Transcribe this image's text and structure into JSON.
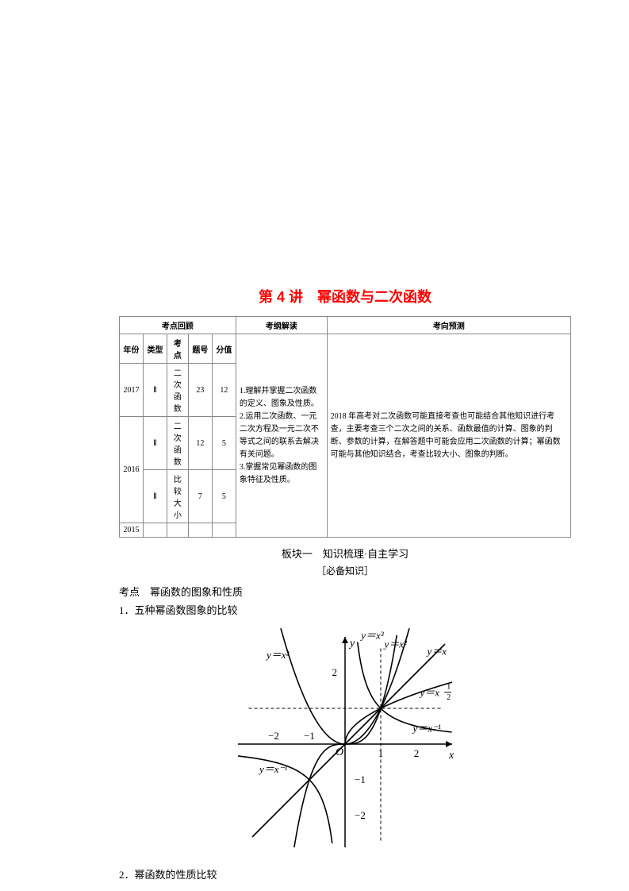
{
  "title": "第 4 讲　幂函数与二次函数",
  "review_table": {
    "header_groups": [
      "考点回顾",
      "考纲解读",
      "考向预测"
    ],
    "sub_headers": [
      "年份",
      "类型",
      "考点",
      "题号",
      "分值"
    ],
    "rows": [
      {
        "year": "2017",
        "type": "Ⅱ",
        "topic": "二次函数",
        "qno": "23",
        "score": "12"
      },
      {
        "year_rowspan": "2016",
        "type": "Ⅱ",
        "topic": "二次函数",
        "qno": "12",
        "score": "5"
      },
      {
        "type": "Ⅱ",
        "topic": "比较大小",
        "qno": "7",
        "score": "5"
      },
      {
        "year": "2015",
        "type": "",
        "topic": "",
        "qno": "",
        "score": ""
      }
    ],
    "jiedu": "1.理解并掌握二次函数的定义、图象及性质。\n2.运用二次函数、一元二次方程及一元二次不等式之间的联系去解决有关问题。\n3.掌握常见幂函数的图象特征及性质。",
    "yuce": "2018 年高考对二次函数可能直接考查也可能结合其他知识进行考查，主要考查三个二次之间的关系、函数最值的计算、图象的判断、参数的计算，在解答题中可能会应用二次函数的计算；幂函数可能与其他知识结合，考查比较大小、图象的判断。"
  },
  "section": "板块一　知识梳理·自主学习",
  "sub_section": "［必备知识］",
  "kaodian": "考点　幂函数的图象和性质",
  "item1": "1．五种幂函数图象的比较",
  "item2": "2．幂函数的性质比较",
  "graph": {
    "axis_color": "#000000",
    "curve_color": "#000000",
    "grid_dash": "4,3",
    "xlim": [
      -3,
      3
    ],
    "ylim": [
      -3,
      3
    ],
    "ticks_x": [
      -2,
      -1,
      1,
      2
    ],
    "ticks_y": [
      -2,
      -1,
      2
    ],
    "labels": {
      "yaxis": "y",
      "xaxis": "x",
      "origin": "O",
      "yx": "y＝x",
      "yx2_l": "y＝x²",
      "yx2_r": "y＝x²",
      "yx3": "y＝x³",
      "yxhalf": "y＝x",
      "yxhalf_exp": "1/2",
      "yxinv_l": "y＝x⁻¹",
      "yxinv_r": "y＝x⁻¹"
    },
    "font_size_axis": 14,
    "font_size_label": 13,
    "font_size_tick": 13,
    "stroke_width": 1.6
  }
}
